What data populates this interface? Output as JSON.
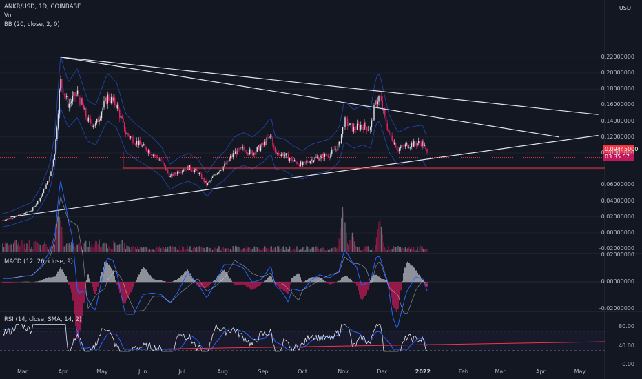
{
  "header": {
    "symbol": "ANKR/USD, 1D, COINBASE",
    "vol_label": "Vol",
    "bb_label": "BB (20, close, 2, 0)",
    "currency": "USD"
  },
  "price_badge": {
    "price": "0.09445000",
    "countdown": "03:35:57",
    "color": "#f23645"
  },
  "macd_label": "MACD (12, 26, close, 9)",
  "rsi_label": "RSI (14, close, SMA, 14, 2)",
  "chart_data": [
    {
      "type": "candlestick",
      "title": "ANKR/USD, 1D, COINBASE",
      "y_axis_ticks": [
        "0.22000000",
        "0.20000000",
        "0.18000000",
        "0.16000000",
        "0.14000000",
        "0.12000000",
        "0.10000000",
        "0.06000000",
        "0.04000000",
        "0.02000000",
        "0.00000000",
        "-0.02000000"
      ],
      "ylim": [
        -0.02,
        0.24
      ],
      "x_axis_ticks": [
        "Mar",
        "Apr",
        "May",
        "Jun",
        "Jul",
        "Aug",
        "Sep",
        "Oct",
        "Nov",
        "Dec",
        "2022",
        "Feb",
        "Mar",
        "Apr",
        "May"
      ],
      "close_path": [
        [
          "2021-02-14",
          0.016
        ],
        [
          "2021-02-20",
          0.018
        ],
        [
          "2021-03-01",
          0.024
        ],
        [
          "2021-03-08",
          0.028
        ],
        [
          "2021-03-15",
          0.045
        ],
        [
          "2021-03-22",
          0.07
        ],
        [
          "2021-03-26",
          0.105
        ],
        [
          "2021-03-30",
          0.19
        ],
        [
          "2021-04-05",
          0.16
        ],
        [
          "2021-04-12",
          0.175
        ],
        [
          "2021-04-20",
          0.14
        ],
        [
          "2021-04-26",
          0.135
        ],
        [
          "2021-05-01",
          0.155
        ],
        [
          "2021-05-05",
          0.17
        ],
        [
          "2021-05-12",
          0.16
        ],
        [
          "2021-05-19",
          0.125
        ],
        [
          "2021-05-26",
          0.115
        ],
        [
          "2021-06-01",
          0.108
        ],
        [
          "2021-06-08",
          0.1
        ],
        [
          "2021-06-15",
          0.09
        ],
        [
          "2021-06-22",
          0.07
        ],
        [
          "2021-06-29",
          0.078
        ],
        [
          "2021-07-06",
          0.082
        ],
        [
          "2021-07-13",
          0.076
        ],
        [
          "2021-07-20",
          0.06
        ],
        [
          "2021-07-27",
          0.075
        ],
        [
          "2021-08-03",
          0.085
        ],
        [
          "2021-08-10",
          0.1
        ],
        [
          "2021-08-17",
          0.105
        ],
        [
          "2021-08-24",
          0.1
        ],
        [
          "2021-09-01",
          0.11
        ],
        [
          "2021-09-07",
          0.122
        ],
        [
          "2021-09-10",
          0.1
        ],
        [
          "2021-09-17",
          0.098
        ],
        [
          "2021-09-24",
          0.09
        ],
        [
          "2021-10-01",
          0.085
        ],
        [
          "2021-10-08",
          0.092
        ],
        [
          "2021-10-15",
          0.095
        ],
        [
          "2021-10-22",
          0.098
        ],
        [
          "2021-10-29",
          0.11
        ],
        [
          "2021-11-02",
          0.14
        ],
        [
          "2021-11-09",
          0.13
        ],
        [
          "2021-11-16",
          0.135
        ],
        [
          "2021-11-22",
          0.13
        ],
        [
          "2021-11-26",
          0.165
        ],
        [
          "2021-11-29",
          0.17
        ],
        [
          "2021-12-02",
          0.15
        ],
        [
          "2021-12-06",
          0.125
        ],
        [
          "2021-12-13",
          0.105
        ],
        [
          "2021-12-20",
          0.11
        ],
        [
          "2021-12-27",
          0.112
        ],
        [
          "2022-01-01",
          0.113
        ],
        [
          "2022-01-05",
          0.095
        ]
      ],
      "volume_spikes": [
        [
          "2021-03-29",
          0.045
        ],
        [
          "2021-11-01",
          0.06
        ],
        [
          "2021-11-08",
          0.025
        ],
        [
          "2021-11-29",
          0.045
        ]
      ],
      "last_price": 0.09445,
      "horizontal_line": 0.081,
      "trendlines": [
        {
          "from": [
            "2021-03-30",
            0.22
          ],
          "to": [
            "2022-05-15",
            0.148
          ]
        },
        {
          "from": [
            "2021-03-30",
            0.22
          ],
          "to": [
            "2022-04-15",
            0.12
          ]
        },
        {
          "from": [
            "2021-02-20",
            0.02
          ],
          "to": [
            "2022-05-15",
            0.122
          ]
        }
      ]
    },
    {
      "type": "line",
      "title": "MACD (12, 26, close, 9)",
      "y_axis_ticks": [
        "0.02000000",
        "0.00000000",
        "-0.02000000"
      ],
      "ylim": [
        -0.025,
        0.025
      ]
    },
    {
      "type": "line",
      "title": "RSI (14, close, SMA, 14, 2)",
      "y_axis_ticks": [
        "80.00",
        "40.00",
        "0.00"
      ],
      "ylim": [
        0,
        100
      ],
      "bands": [
        70,
        30
      ],
      "x_axis_ticks": [
        "Mar",
        "Apr",
        "May",
        "Jun",
        "Jul",
        "Aug",
        "Sep",
        "Oct",
        "Nov",
        "Dec",
        "2022",
        "Feb",
        "Mar",
        "Apr",
        "May"
      ]
    }
  ]
}
